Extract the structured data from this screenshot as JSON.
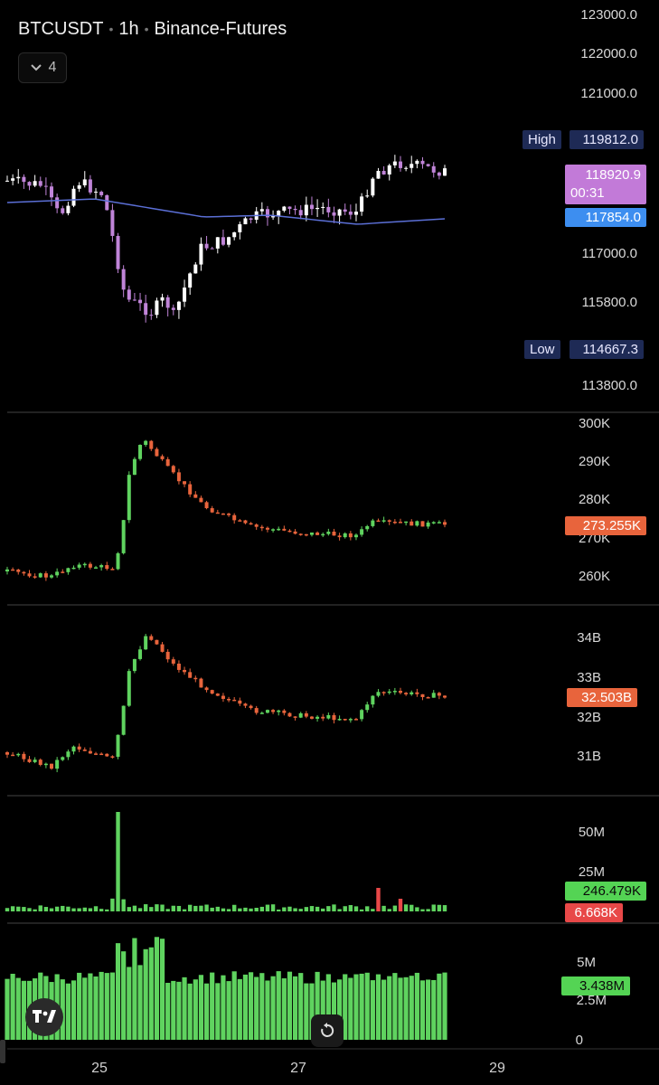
{
  "header": {
    "symbol": "BTCUSDT",
    "interval": "1h",
    "exchange": "Binance-Futures",
    "collapsed_count": "4"
  },
  "price_pane": {
    "axis_labels": [
      "123000.0",
      "122000.0",
      "121000.0",
      "117000.0",
      "115800.0",
      "113800.0"
    ],
    "high_label": "High",
    "high_value": "119812.0",
    "low_label": "Low",
    "low_value": "114667.3",
    "last_price": "118920.9",
    "countdown": "00:31",
    "ma_value": "117854.0",
    "colors": {
      "up": "#ffffff",
      "down": "#c084d8",
      "ma": "#5b6fd6",
      "last_tag": "#c27ad8",
      "ma_tag": "#3d8ef0"
    }
  },
  "oi_pane": {
    "axis_labels": [
      "300K",
      "290K",
      "280K",
      "270K",
      "260K"
    ],
    "current_tag": "273.255K"
  },
  "oi_value_pane": {
    "axis_labels": [
      "34B",
      "33B",
      "32B",
      "31B"
    ],
    "current_tag": "32.503B"
  },
  "liq_pane": {
    "axis_labels": [
      "50M",
      "25M"
    ],
    "long_tag": "246.479K",
    "short_tag": "6.668K"
  },
  "vol_pane": {
    "axis_labels": [
      "5M",
      "2.5M",
      "0"
    ],
    "current_tag": "3.438M"
  },
  "x_axis": {
    "labels": [
      "25",
      "27",
      "29"
    ]
  },
  "icons": {
    "logo": "tradingview-logo-icon",
    "reset": "reset-icon",
    "collapse": "chevron-down-icon"
  }
}
